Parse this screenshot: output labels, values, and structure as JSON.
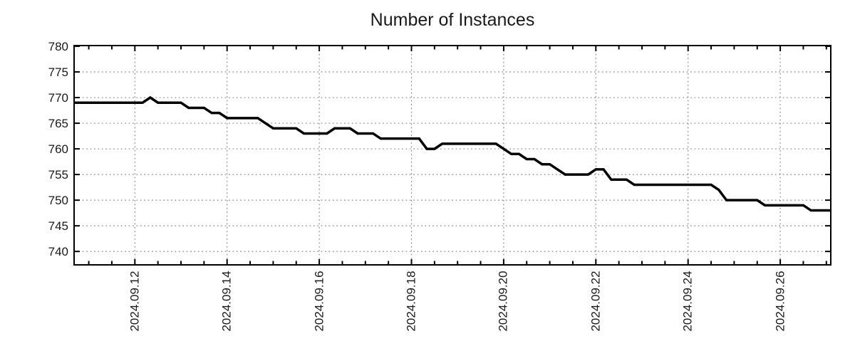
{
  "colors": {
    "line": "#000000",
    "grid": "#8a8a8a",
    "border": "#000000",
    "text": "#1a1a1a",
    "background": "#ffffff"
  },
  "chart_data": {
    "type": "line",
    "title": "Number of Instances",
    "legend": "none",
    "grid": "dotted",
    "x_axis": {
      "tick_labels": [
        "2024.09.12",
        "2024.09.14",
        "2024.09.16",
        "2024.09.18",
        "2024.09.20",
        "2024.09.22",
        "2024.09.24",
        "2024.09.26"
      ],
      "tick_day_offsets": [
        0,
        2,
        4,
        6,
        8,
        10,
        12,
        14
      ],
      "minor_tick_every_days": 0.5,
      "range_days_relative_to_first_label": [
        -1.3,
        15.08
      ]
    },
    "y_axis": {
      "tick_labels": [
        "740",
        "745",
        "750",
        "755",
        "760",
        "765",
        "770",
        "775",
        "780"
      ],
      "ticks": [
        740,
        745,
        750,
        755,
        760,
        765,
        770,
        775,
        780
      ],
      "range": [
        737.5,
        780
      ]
    },
    "series": [
      {
        "name": "instances",
        "sample_start": "2024-09-10 16:00",
        "sample_interval_hours": 4,
        "values": [
          769,
          769,
          769,
          769,
          769,
          769,
          769,
          769,
          769,
          769,
          770,
          769,
          769,
          769,
          769,
          768,
          768,
          768,
          767,
          767,
          766,
          766,
          766,
          766,
          766,
          765,
          764,
          764,
          764,
          764,
          763,
          763,
          763,
          763,
          764,
          764,
          764,
          763,
          763,
          763,
          762,
          762,
          762,
          762,
          762,
          762,
          760,
          760,
          761,
          761,
          761,
          761,
          761,
          761,
          761,
          761,
          760,
          759,
          759,
          758,
          758,
          757,
          757,
          756,
          755,
          755,
          755,
          755,
          756,
          756,
          754,
          754,
          754,
          753,
          753,
          753,
          753,
          753,
          753,
          753,
          753,
          753,
          753,
          753,
          752,
          750,
          750,
          750,
          750,
          750,
          749,
          749,
          749,
          749,
          749,
          749,
          748,
          748,
          748
        ]
      }
    ]
  }
}
